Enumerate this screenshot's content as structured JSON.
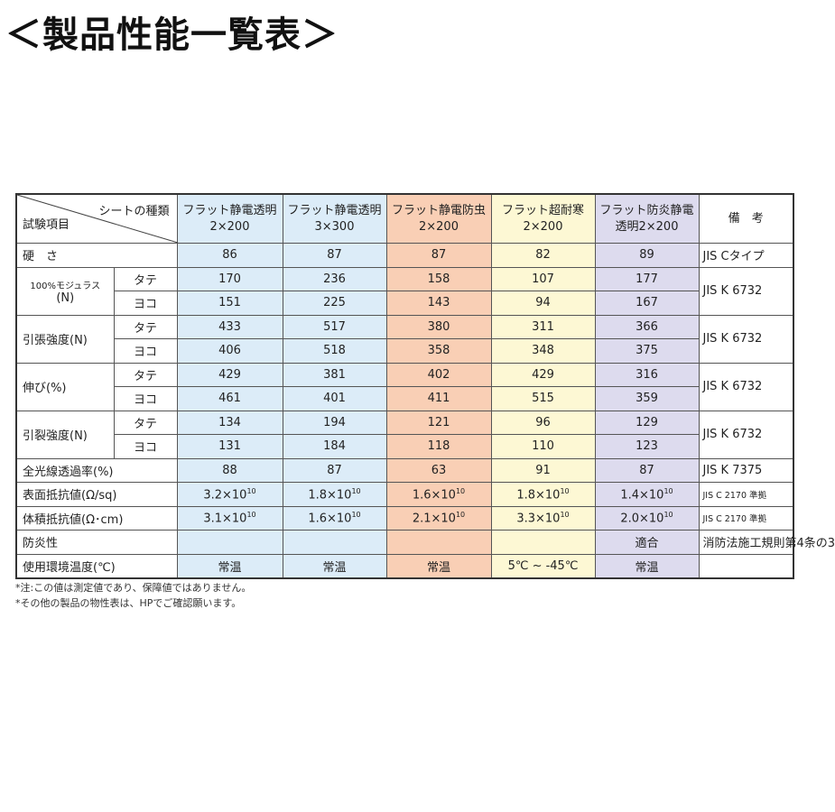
{
  "title": "＜製品性能一覧表＞",
  "header": {
    "corner_top": "シートの種類",
    "corner_bottom": "試験項目",
    "products": [
      [
        "フラット静電透明",
        "2×200"
      ],
      [
        "フラット静電透明",
        "3×300"
      ],
      [
        "フラット静電防虫",
        "2×200"
      ],
      [
        "フラット超耐寒",
        "2×200"
      ],
      [
        "フラット防炎静電",
        "透明2×200"
      ]
    ],
    "remarks": "備　考"
  },
  "column_colors": [
    "#dcecf8",
    "#dcecf8",
    "#f9cfb5",
    "#fdf8d4",
    "#dddbee"
  ],
  "rows": [
    {
      "label": "硬　さ",
      "values": [
        "86",
        "87",
        "87",
        "82",
        "89"
      ],
      "remark": "JIS Cタイプ"
    },
    {
      "label": "100%モジュラス\n(N)",
      "sub": [
        {
          "dir": "タテ",
          "values": [
            "170",
            "236",
            "158",
            "107",
            "177"
          ]
        },
        {
          "dir": "ヨコ",
          "values": [
            "151",
            "225",
            "143",
            "94",
            "167"
          ]
        }
      ],
      "remark": "JIS K 6732"
    },
    {
      "label": "引張強度(N)",
      "sub": [
        {
          "dir": "タテ",
          "values": [
            "433",
            "517",
            "380",
            "311",
            "366"
          ]
        },
        {
          "dir": "ヨコ",
          "values": [
            "406",
            "518",
            "358",
            "348",
            "375"
          ]
        }
      ],
      "remark": "JIS K 6732"
    },
    {
      "label": "伸び(%)",
      "sub": [
        {
          "dir": "タテ",
          "values": [
            "429",
            "381",
            "402",
            "429",
            "316"
          ]
        },
        {
          "dir": "ヨコ",
          "values": [
            "461",
            "401",
            "411",
            "515",
            "359"
          ]
        }
      ],
      "remark": "JIS K 6732"
    },
    {
      "label": "引裂強度(N)",
      "sub": [
        {
          "dir": "タテ",
          "values": [
            "134",
            "194",
            "121",
            "96",
            "129"
          ]
        },
        {
          "dir": "ヨコ",
          "values": [
            "131",
            "184",
            "118",
            "110",
            "123"
          ]
        }
      ],
      "remark": "JIS K 6732"
    },
    {
      "label": "全光線透過率(%)",
      "values": [
        "88",
        "87",
        "63",
        "91",
        "87"
      ],
      "remark": "JIS K 7375"
    },
    {
      "label": "表面抵抗値(Ω/sq)",
      "values": [
        "3.2×10^10",
        "1.8×10^10",
        "1.6×10^10",
        "1.8×10^10",
        "1.4×10^10"
      ],
      "remark": "JIS C 2170 準拠"
    },
    {
      "label": "体積抵抗値(Ω･cm)",
      "values": [
        "3.1×10^10",
        "1.6×10^10",
        "2.1×10^10",
        "3.3×10^10",
        "2.0×10^10"
      ],
      "remark": "JIS C 2170 準拠"
    },
    {
      "label": "防炎性",
      "values": [
        "",
        "",
        "",
        "",
        "適合"
      ],
      "remark": "消防法施工規則第4条の3"
    },
    {
      "label": "使用環境温度(℃)",
      "values": [
        "常温",
        "常温",
        "常温",
        "5℃ ~ -45℃",
        "常温"
      ],
      "remark": ""
    }
  ],
  "notes": [
    "*注:この値は測定値であり、保障値ではありません。",
    "*その他の製品の物性表は、HPでご確認願います。"
  ]
}
